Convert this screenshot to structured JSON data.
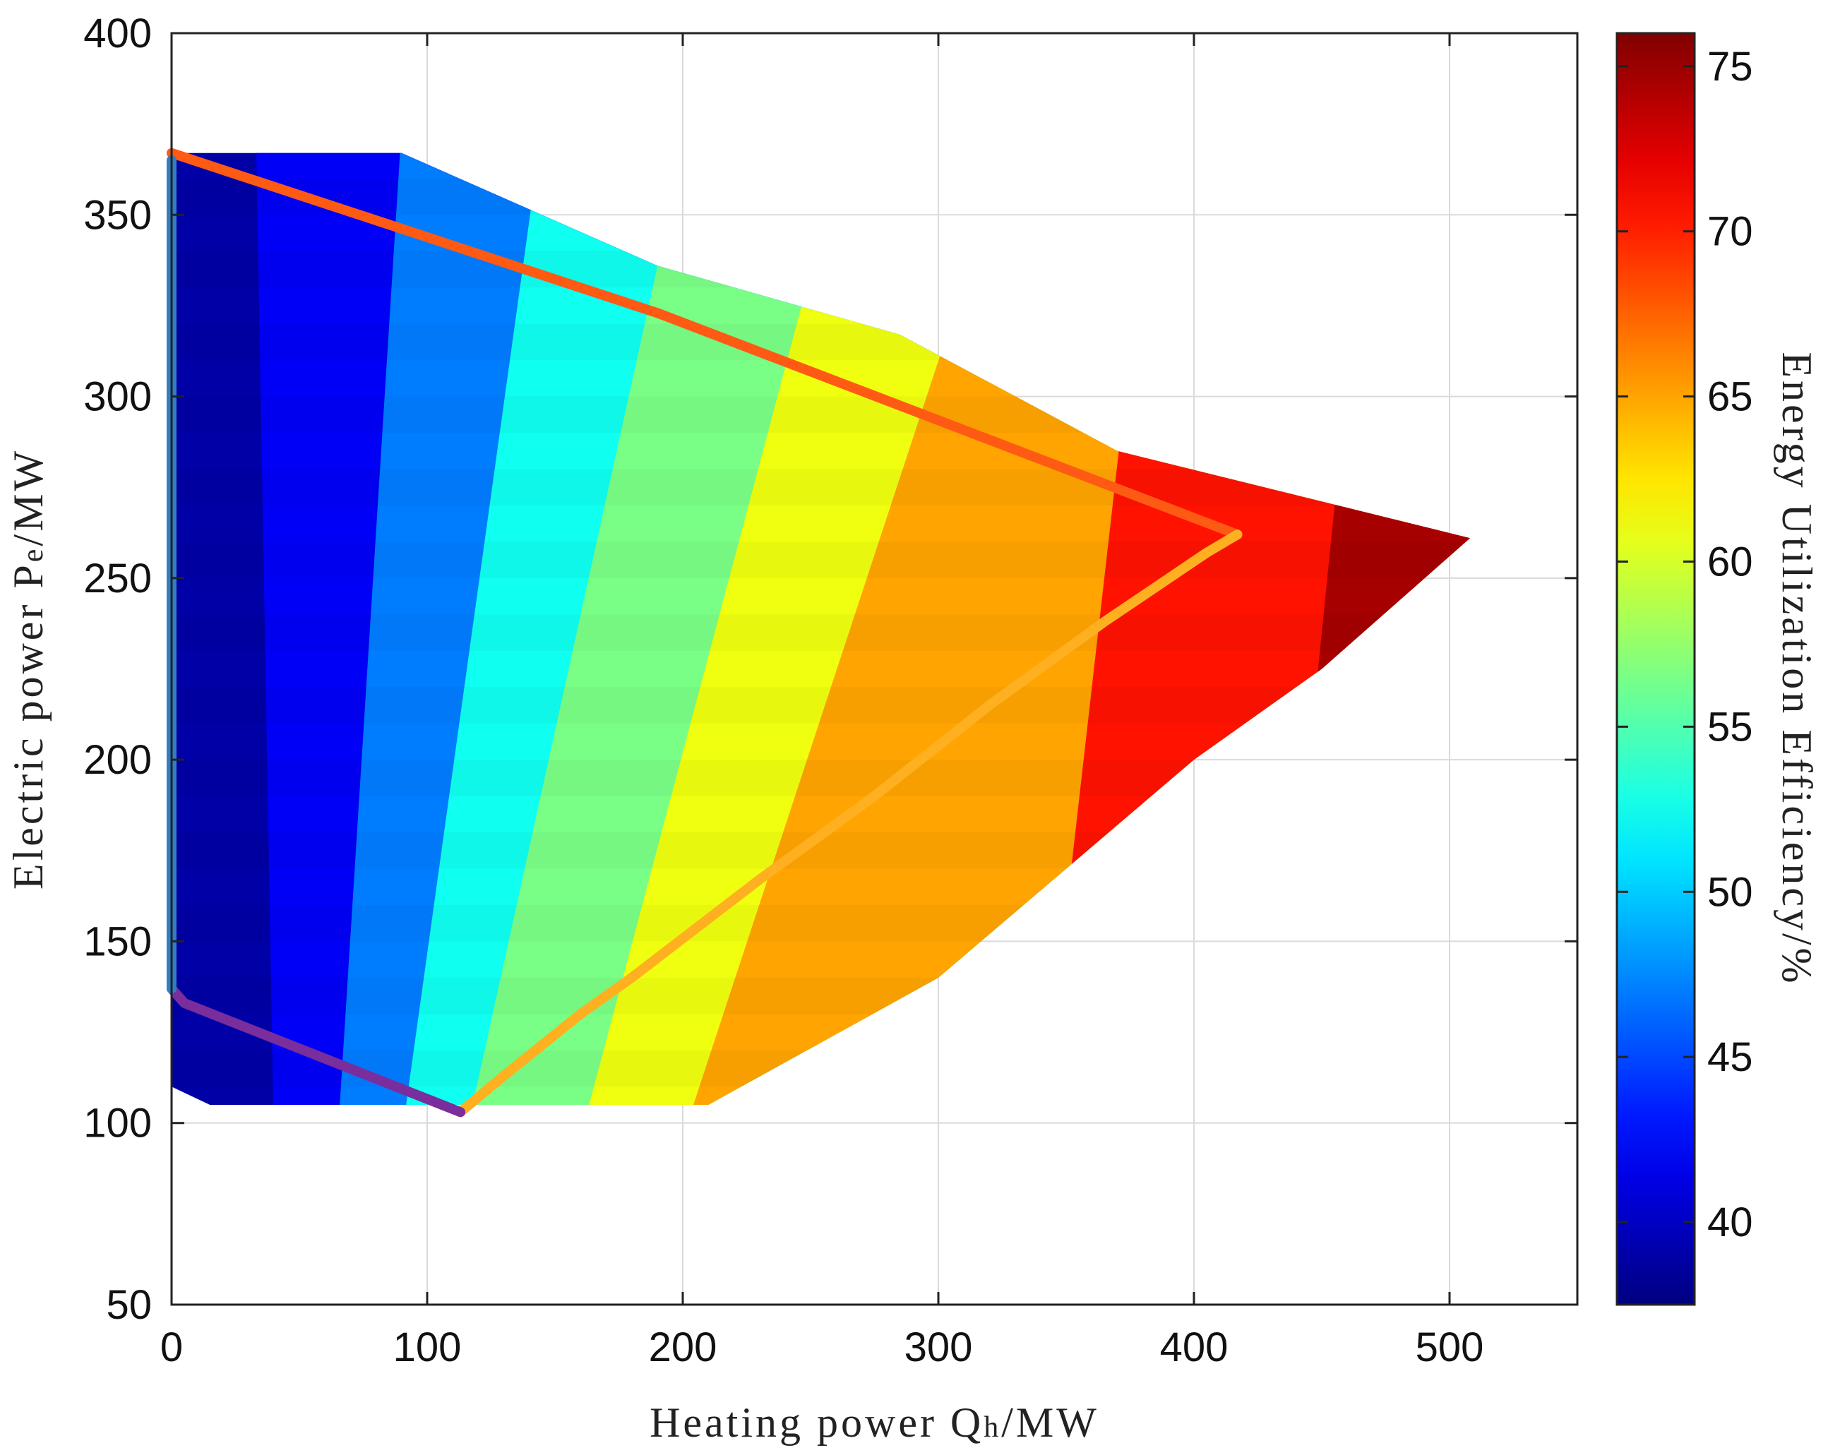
{
  "chart_data": {
    "type": "heatmap",
    "title": "",
    "xlabel": "Heating power Q",
    "xlabel_sub": "h",
    "xlabel_unit": "/MW",
    "ylabel": "Electric power P",
    "ylabel_sub": "e",
    "ylabel_unit": "/MW",
    "xlim": [
      0,
      550
    ],
    "ylim": [
      50,
      400
    ],
    "x_ticks": [
      0,
      100,
      200,
      300,
      400,
      500
    ],
    "y_ticks": [
      50,
      100,
      150,
      200,
      250,
      300,
      350,
      400
    ],
    "grid": true,
    "colorbar": {
      "label": "Energy Utilization Efficiency/%",
      "range": [
        37.5,
        76
      ],
      "ticks": [
        40,
        45,
        50,
        55,
        60,
        65,
        70,
        75
      ],
      "colormap": "jet"
    },
    "operating_region": [
      [
        0,
        367
      ],
      [
        90,
        367
      ],
      [
        190,
        336
      ],
      [
        285,
        317
      ],
      [
        370,
        285
      ],
      [
        508,
        261
      ],
      [
        450,
        225
      ],
      [
        400,
        200
      ],
      [
        300,
        140
      ],
      [
        210,
        105
      ],
      [
        15,
        105
      ],
      [
        0,
        110
      ]
    ],
    "color_bands": [
      {
        "efficiency": 39.0,
        "x_bottom": 0,
        "x_top": 0
      },
      {
        "efficiency": 42.0,
        "x_bottom": 40,
        "x_top": 33
      },
      {
        "efficiency": 47.0,
        "x_bottom": 65,
        "x_top": 90
      },
      {
        "efficiency": 52.5,
        "x_bottom": 90,
        "x_top": 145
      },
      {
        "efficiency": 56.5,
        "x_bottom": 115,
        "x_top": 202
      },
      {
        "efficiency": 61.0,
        "x_bottom": 160,
        "x_top": 265
      },
      {
        "efficiency": 65.0,
        "x_bottom": 200,
        "x_top": 330
      },
      {
        "efficiency": 70.5,
        "x_bottom": 340,
        "x_top": 385
      },
      {
        "efficiency": 74.5,
        "x_bottom": 430,
        "x_top": 470
      }
    ],
    "lines": [
      {
        "color": "#ff5a14",
        "points": [
          [
            0,
            367
          ],
          [
            190,
            323
          ],
          [
            417,
            262
          ]
        ]
      },
      {
        "color": "#ffb020",
        "points": [
          [
            113,
            103
          ],
          [
            130,
            113
          ],
          [
            160,
            130
          ],
          [
            180,
            140
          ],
          [
            230,
            167
          ],
          [
            275,
            190
          ],
          [
            320,
            215
          ],
          [
            365,
            238
          ],
          [
            405,
            257
          ],
          [
            417,
            262
          ]
        ]
      },
      {
        "color": "#7a2d9c",
        "points": [
          [
            0,
            137
          ],
          [
            5,
            133
          ],
          [
            113,
            103
          ]
        ]
      },
      {
        "color": "#2f7fc4",
        "points": [
          [
            0,
            137
          ],
          [
            0,
            365
          ]
        ]
      }
    ]
  }
}
